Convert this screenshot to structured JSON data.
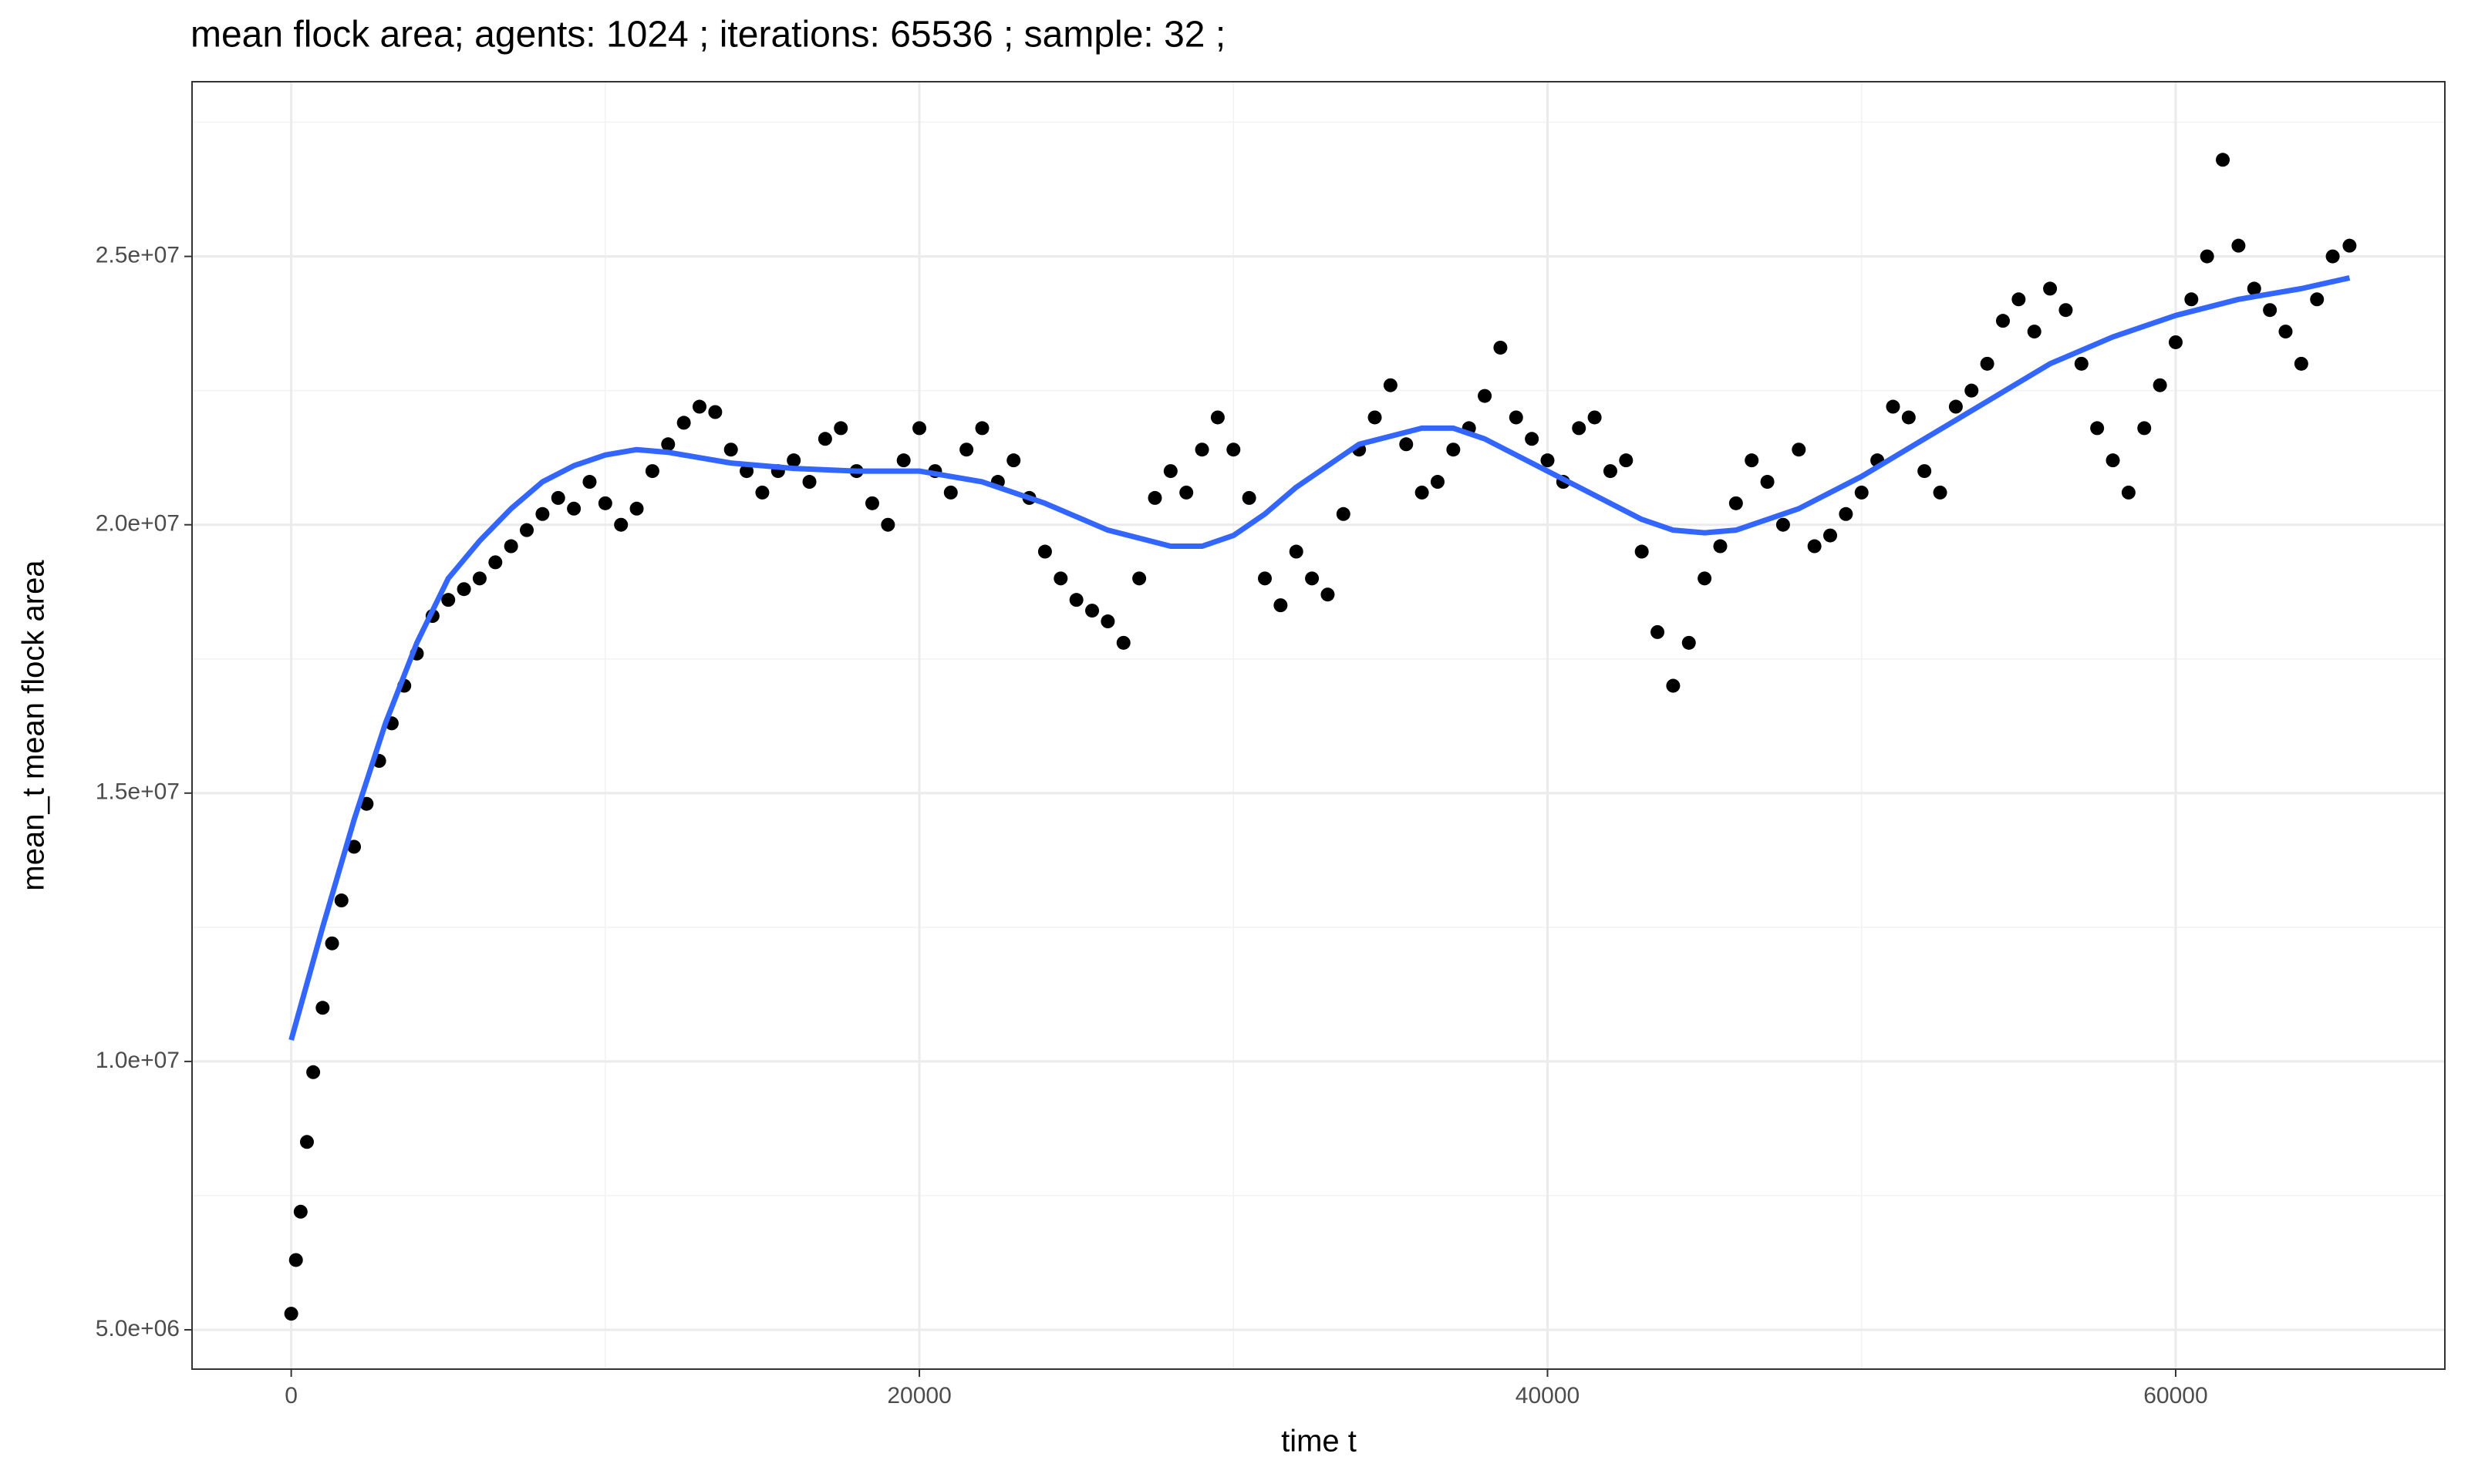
{
  "chart_data": {
    "type": "scatter",
    "title": "mean flock area; agents: 1024 ; iterations: 65536 ; sample: 32 ;",
    "xlabel": "time t",
    "ylabel": "mean_t mean flock area",
    "xlim": [
      -3158,
      68571
    ],
    "ylim": [
      4267000,
      28255000
    ],
    "xticks": [
      0,
      20000,
      40000,
      60000
    ],
    "xminorticks": [
      10000,
      30000,
      50000
    ],
    "yticks": [
      {
        "value": 5000000,
        "label": "5.0e+06"
      },
      {
        "value": 10000000,
        "label": "1.0e+07"
      },
      {
        "value": 15000000,
        "label": "1.5e+07"
      },
      {
        "value": 20000000,
        "label": "2.0e+07"
      },
      {
        "value": 25000000,
        "label": "2.5e+07"
      }
    ],
    "yminorticks": [
      7500000,
      12500000,
      17500000,
      22500000,
      27500000
    ],
    "grid": true,
    "series": [
      {
        "kind": "points",
        "color": "#000000",
        "x": [
          0,
          150,
          300,
          500,
          700,
          1000,
          1300,
          1600,
          2000,
          2400,
          2800,
          3200,
          3600,
          4000,
          4500,
          5000,
          5500,
          6000,
          6500,
          7000,
          7500,
          8000,
          8500,
          9000,
          9500,
          10000,
          10500,
          11000,
          11500,
          12000,
          12500,
          13000,
          13500,
          14000,
          14500,
          15000,
          15500,
          16000,
          16500,
          17000,
          17500,
          18000,
          18500,
          19000,
          19500,
          20000,
          20500,
          21000,
          21500,
          22000,
          22500,
          23000,
          23500,
          24000,
          24500,
          25000,
          25500,
          26000,
          26500,
          27000,
          27500,
          28000,
          28500,
          29000,
          29500,
          30000,
          30500,
          31000,
          31500,
          32000,
          32500,
          33000,
          33500,
          34000,
          34500,
          35000,
          35500,
          36000,
          36500,
          37000,
          37500,
          38000,
          38500,
          39000,
          39500,
          40000,
          40500,
          41000,
          41500,
          42000,
          42500,
          43000,
          43500,
          44000,
          44500,
          45000,
          45500,
          46000,
          46500,
          47000,
          47500,
          48000,
          48500,
          49000,
          49500,
          50000,
          50500,
          51000,
          51500,
          52000,
          52500,
          53000,
          53500,
          54000,
          54500,
          55000,
          55500,
          56000,
          56500,
          57000,
          57500,
          58000,
          58500,
          59000,
          59500,
          60000,
          60500,
          61000,
          61500,
          62000,
          62500,
          63000,
          63500,
          64000,
          64500,
          65000,
          65536
        ],
        "values": [
          5300000.0,
          6300000.0,
          7200000.0,
          8500000.0,
          9800000.0,
          11000000.0,
          12200000.0,
          13000000.0,
          14000000.0,
          14800000.0,
          15600000.0,
          16300000.0,
          17000000.0,
          17600000.0,
          18300000.0,
          18600000.0,
          18800000.0,
          19000000.0,
          19300000.0,
          19600000.0,
          19900000.0,
          20200000.0,
          20500000.0,
          20300000.0,
          20800000.0,
          20400000.0,
          20000000.0,
          20300000.0,
          21000000.0,
          21500000.0,
          21900000.0,
          22200000.0,
          22100000.0,
          21400000.0,
          21000000.0,
          20600000.0,
          21000000.0,
          21200000.0,
          20800000.0,
          21600000.0,
          21800000.0,
          21000000.0,
          20400000.0,
          20000000.0,
          21200000.0,
          21800000.0,
          21000000.0,
          20600000.0,
          21400000.0,
          21800000.0,
          20800000.0,
          21200000.0,
          20500000.0,
          19500000.0,
          19000000.0,
          18600000.0,
          18400000.0,
          18200000.0,
          17800000.0,
          19000000.0,
          20500000.0,
          21000000.0,
          20600000.0,
          21400000.0,
          22000000.0,
          21400000.0,
          20500000.0,
          19000000.0,
          18500000.0,
          19500000.0,
          19000000.0,
          18700000.0,
          20200000.0,
          21400000.0,
          22000000.0,
          22600000.0,
          21500000.0,
          20600000.0,
          20800000.0,
          21400000.0,
          21800000.0,
          22400000.0,
          23300000.0,
          22000000.0,
          21600000.0,
          21200000.0,
          20800000.0,
          21800000.0,
          22000000.0,
          21000000.0,
          21200000.0,
          19500000.0,
          18000000.0,
          17000000.0,
          17800000.0,
          19000000.0,
          19600000.0,
          20400000.0,
          21200000.0,
          20800000.0,
          20000000.0,
          21400000.0,
          19600000.0,
          19800000.0,
          20200000.0,
          20600000.0,
          21200000.0,
          22200000.0,
          22000000.0,
          21000000.0,
          20600000.0,
          22200000.0,
          22500000.0,
          23000000.0,
          23800000.0,
          24200000.0,
          23600000.0,
          24400000.0,
          24000000.0,
          23000000.0,
          21800000.0,
          21200000.0,
          20600000.0,
          21800000.0,
          22600000.0,
          23400000.0,
          24200000.0,
          25000000.0,
          26800000.0,
          25200000.0,
          24400000.0,
          24000000.0,
          23600000.0,
          23000000.0,
          24200000.0,
          25000000.0,
          25200000.0
        ]
      },
      {
        "kind": "line",
        "color": "#3366FF",
        "x": [
          0,
          1000,
          2000,
          3000,
          4000,
          5000,
          6000,
          7000,
          8000,
          9000,
          10000,
          11000,
          12000,
          13000,
          14000,
          15000,
          16000,
          18000,
          20000,
          22000,
          24000,
          26000,
          28000,
          29000,
          30000,
          31000,
          32000,
          34000,
          36000,
          37000,
          38000,
          40000,
          42000,
          43000,
          44000,
          45000,
          46000,
          48000,
          50000,
          52000,
          54000,
          56000,
          58000,
          60000,
          62000,
          64000,
          65536
        ],
        "values": [
          10400000.0,
          12500000.0,
          14500000.0,
          16300000.0,
          17800000.0,
          19000000.0,
          19700000.0,
          20300000.0,
          20800000.0,
          21100000.0,
          21300000.0,
          21400000.0,
          21350000.0,
          21250000.0,
          21150000.0,
          21100000.0,
          21050000.0,
          21000000.0,
          21000000.0,
          20800000.0,
          20400000.0,
          19900000.0,
          19600000.0,
          19600000.0,
          19800000.0,
          20200000.0,
          20700000.0,
          21500000.0,
          21800000.0,
          21800000.0,
          21600000.0,
          21000000.0,
          20400000.0,
          20100000.0,
          19900000.0,
          19850000.0,
          19900000.0,
          20300000.0,
          20900000.0,
          21600000.0,
          22300000.0,
          23000000.0,
          23500000.0,
          23900000.0,
          24200000.0,
          24400000.0,
          24600000.0
        ]
      }
    ]
  }
}
